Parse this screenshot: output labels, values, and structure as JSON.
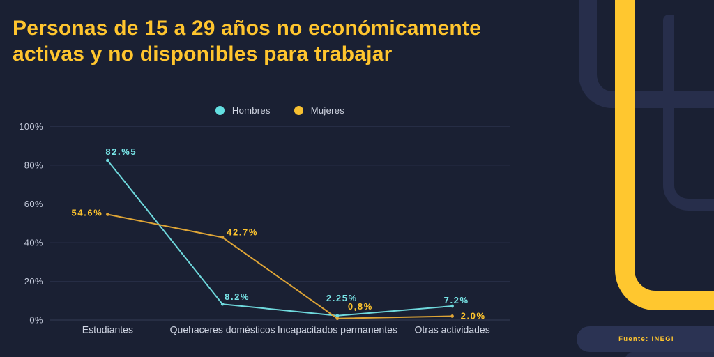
{
  "title": {
    "line1": "Personas de 15 a 29 años no económicamente",
    "line2": "activas y no disponibles para trabajar"
  },
  "legend": [
    {
      "label": "Hombres",
      "color": "#63dfe1"
    },
    {
      "label": "Mujeres",
      "color": "#f7c031"
    }
  ],
  "source": "Fuente: INEGI",
  "colors": {
    "background": "#1a2033",
    "title_yellow": "#ffc52e",
    "decor_navy": "#272e4b",
    "decor_yellow": "#ffc72f",
    "hombres_line": "#6fd9dd",
    "hombres_label": "#79e6e8",
    "mujeres_line": "#dfa536",
    "mujeres_label": "#ffc52e",
    "grid": "#262d45",
    "axis_text": "#c3c9da"
  },
  "chart_data": {
    "type": "line",
    "title": "Personas de 15 a 29 años no económicamente activas y no disponibles para trabajar",
    "categories": [
      "Estudiantes",
      "Quehaceres domésticos",
      "Incapacitados permanentes",
      "Otras actividades"
    ],
    "series": [
      {
        "name": "Hombres",
        "color": "#6fd9dd",
        "label_color": "#79e6e8",
        "values": [
          82.5,
          8.2,
          2.25,
          7.2
        ],
        "point_labels": [
          "82.%5",
          "8.2%",
          "2.25%",
          "7.2%"
        ]
      },
      {
        "name": "Mujeres",
        "color": "#dfa536",
        "label_color": "#ffc52e",
        "values": [
          54.6,
          42.7,
          0.8,
          2.0
        ],
        "point_labels": [
          "54.6%",
          "42.7%",
          "0,8%",
          "2.0%"
        ]
      }
    ],
    "y_ticks": [
      {
        "label": "100%",
        "value": 100
      },
      {
        "label": "80%",
        "value": 80
      },
      {
        "label": "60%",
        "value": 60
      },
      {
        "label": "40%",
        "value": 40
      },
      {
        "label": "20%",
        "value": 20
      },
      {
        "label": "0%",
        "value": 0
      }
    ],
    "ylim": [
      0,
      100
    ],
    "grid": true,
    "legend_position": "top-center"
  }
}
